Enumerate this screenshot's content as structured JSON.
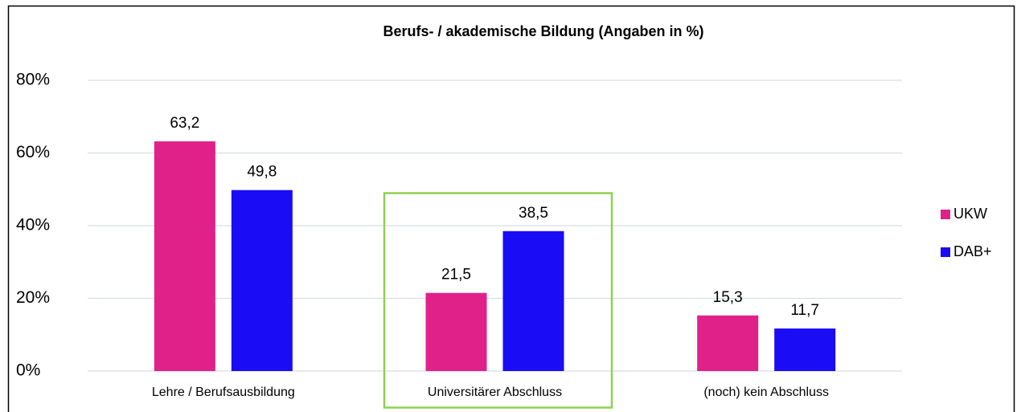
{
  "chart_data": {
    "type": "bar",
    "title": "Berufs- / akademische Bildung (Angaben in %)",
    "categories": [
      "Lehre / Berufsausbildung",
      "Universitärer Abschluss",
      "(noch) kein Abschluss"
    ],
    "series": [
      {
        "name": "UKW",
        "color": "#e0218a",
        "values": [
          63.2,
          21.5,
          15.3
        ],
        "value_labels": [
          "63,2",
          "21,5",
          "15,3"
        ]
      },
      {
        "name": "DAB+",
        "color": "#1a0cf5",
        "values": [
          49.8,
          38.5,
          11.7
        ],
        "value_labels": [
          "49,8",
          "38,5",
          "11,7"
        ]
      }
    ],
    "ylim": [
      0,
      80
    ],
    "yticks": [
      {
        "value": 0,
        "label": "0%"
      },
      {
        "value": 20,
        "label": "20%"
      },
      {
        "value": 40,
        "label": "40%"
      },
      {
        "value": 60,
        "label": "60%"
      },
      {
        "value": 80,
        "label": "80%"
      }
    ],
    "grid": true,
    "legend": "right"
  }
}
